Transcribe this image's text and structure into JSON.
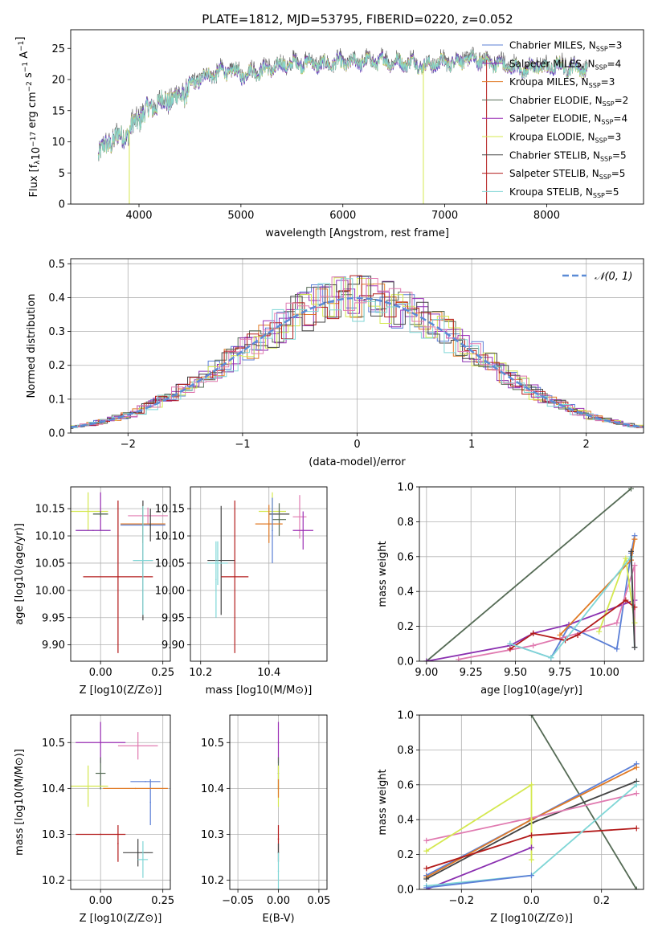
{
  "figure_title": "PLATE=1812, MJD=53795, FIBERID=0220, z=0.052",
  "colors": {
    "chabrier_miles": "#5b7fd6",
    "salpeter_miles": "#8a2fb0",
    "kroupa_miles": "#e07a25",
    "chabrier_elodie": "#556b55",
    "salpeter_elodie": "#9b2fb5",
    "kroupa_elodie": "#d4e84f",
    "chabrier_stelib": "#444444",
    "salpeter_stelib": "#b31b1b",
    "kroupa_stelib": "#7fd6d6",
    "pink": "#e07ab0",
    "gauss": "#5b8bd6",
    "grid": "#b0b0b0"
  },
  "chart_data": [
    {
      "id": "spectrum",
      "type": "line",
      "title": "PLATE=1812, MJD=53795, FIBERID=0220, z=0.052",
      "xlabel": "wavelength [Angstrom, rest frame]",
      "ylabel": "Flux [f_λ 10^-17 erg cm^-2 s^-1 A^-1]",
      "xlim": [
        3330,
        8950
      ],
      "ylim": [
        0,
        28
      ],
      "xticks": [
        4000,
        5000,
        6000,
        7000,
        8000
      ],
      "yticks": [
        0,
        5,
        10,
        15,
        20,
        25
      ],
      "legend_position": "top-right",
      "continuum": {
        "x": [
          3600,
          3650,
          3700,
          3800,
          3900,
          3950,
          4000,
          4100,
          4200,
          4300,
          4400,
          4500,
          4600,
          4700,
          4800,
          4900,
          5000,
          5100,
          5200,
          5300,
          5400,
          5500,
          5600,
          5700,
          5800,
          5900,
          6000,
          6100,
          6200,
          6300,
          6400,
          6500,
          6600,
          6700,
          6800,
          6900,
          7000,
          7100,
          7200,
          7300,
          7400,
          7500,
          7600,
          7700,
          7800,
          7900,
          8000,
          8100,
          8200,
          8300,
          8400
        ],
        "y": [
          8,
          9,
          10,
          11,
          11.5,
          13,
          14,
          15.5,
          16.5,
          17,
          17.5,
          19,
          20.5,
          21,
          21.5,
          21.8,
          21,
          21.5,
          21.8,
          22,
          22.5,
          22.8,
          23,
          23,
          22.5,
          23,
          23,
          23,
          23.2,
          23.3,
          23.3,
          23,
          23,
          23,
          22.5,
          22.8,
          23,
          23.2,
          23.5,
          23.5,
          23.2,
          23,
          22.5,
          22,
          22,
          22.5,
          22,
          22.5,
          22.3,
          22.2,
          22
        ]
      },
      "series": [
        {
          "name": "Chabrier MILES, N_SSP=3",
          "legend": "Chabrier MILES, N",
          "n": "3",
          "color_key": "chabrier_miles"
        },
        {
          "name": "Salpeter MILES, N_SSP=4",
          "legend": "Salpeter MILES, N",
          "n": "4",
          "color_key": "salpeter_miles"
        },
        {
          "name": "Kroupa MILES, N_SSP=3",
          "legend": "Kroupa MILES, N",
          "n": "3",
          "color_key": "kroupa_miles"
        },
        {
          "name": "Chabrier ELODIE, N_SSP=2",
          "legend": "Chabrier ELODIE, N",
          "n": "2",
          "color_key": "chabrier_elodie"
        },
        {
          "name": "Salpeter ELODIE, N_SSP=4",
          "legend": "Salpeter ELODIE, N",
          "n": "4",
          "color_key": "salpeter_elodie"
        },
        {
          "name": "Kroupa ELODIE, N_SSP=3",
          "legend": "Kroupa ELODIE, N",
          "n": "3",
          "color_key": "kroupa_elodie"
        },
        {
          "name": "Chabrier STELIB, N_SSP=5",
          "legend": "Chabrier STELIB, N",
          "n": "5",
          "color_key": "chabrier_stelib"
        },
        {
          "name": "Salpeter STELIB, N_SSP=5",
          "legend": "Salpeter STELIB, N",
          "n": "5",
          "color_key": "salpeter_stelib"
        },
        {
          "name": "Kroupa STELIB, N_SSP=5",
          "legend": "Kroupa STELIB, N",
          "n": "5",
          "color_key": "kroupa_stelib"
        }
      ]
    },
    {
      "id": "residuals",
      "type": "line",
      "xlabel": "(data-model)/error",
      "ylabel": "Normed distribution",
      "xlim": [
        -2.5,
        2.5
      ],
      "ylim": [
        0,
        0.515
      ],
      "xticks": [
        -2,
        -1,
        0,
        1,
        2
      ],
      "yticks": [
        0.0,
        0.1,
        0.2,
        0.3,
        0.4,
        0.5
      ],
      "grid": true,
      "legend_position": "top-right",
      "legend_label": "𝒩(0, 1)",
      "gaussian": {
        "mean": 0,
        "sigma": 1
      }
    },
    {
      "id": "age_Z",
      "type": "scatter",
      "xlabel": "Z [log10(Z/Z⊙)]",
      "ylabel": "age  [log10(age/yr)]",
      "xlim": [
        -0.12,
        0.28
      ],
      "ylim": [
        9.87,
        10.19
      ],
      "xticks": [
        0.0,
        0.25
      ],
      "yticks": [
        9.9,
        9.95,
        10.0,
        10.05,
        10.1,
        10.15
      ],
      "grid": true,
      "points": [
        {
          "c": "kroupa_elodie",
          "x": -0.05,
          "y": 10.145,
          "xe": 0.08,
          "ye": 0.035
        },
        {
          "c": "chabrier_stelib",
          "x": 0.0,
          "y": 10.14,
          "xe": 0.03,
          "ye": 0.0
        },
        {
          "c": "salpeter_elodie",
          "x": 0.0,
          "y": 10.145,
          "xe": 0.0,
          "ye": 0.035
        },
        {
          "c": "chabrier_elodie",
          "x": 0.0,
          "y": 10.14,
          "xe": 0.03,
          "ye": 0.005
        },
        {
          "c": "salpeter_miles",
          "x": -0.03,
          "y": 10.11,
          "xe": 0.07,
          "ye": 0.0
        },
        {
          "c": "pink",
          "x": 0.19,
          "y": 10.137,
          "xe": 0.08,
          "ye": 0.015
        },
        {
          "c": "kroupa_miles",
          "x": 0.17,
          "y": 10.122,
          "xe": 0.09,
          "ye": 0.035
        },
        {
          "c": "chabrier_miles",
          "x": 0.17,
          "y": 10.12,
          "xe": 0.09,
          "ye": 0.0
        },
        {
          "c": "chabrier_stelib",
          "x": 0.2,
          "y": 10.12,
          "xe": 0.0,
          "ye": 0.03
        },
        {
          "c": "salpeter_stelib",
          "x": 0.07,
          "y": 10.025,
          "xe": 0.14,
          "ye": 0.14
        },
        {
          "c": "chabrier_stelib",
          "x": 0.17,
          "y": 10.055,
          "xe": 0.04,
          "ye": 0.11
        },
        {
          "c": "kroupa_stelib",
          "x": 0.17,
          "y": 10.055,
          "xe": 0.04,
          "ye": 0.1
        }
      ]
    },
    {
      "id": "age_mass",
      "type": "scatter",
      "xlabel": "mass [log10(M/M⊙)]",
      "ylabel": "",
      "xlim": [
        10.17,
        10.57
      ],
      "ylim": [
        9.87,
        10.19
      ],
      "xticks": [
        10.2,
        10.4
      ],
      "yticks": [
        9.9,
        9.95,
        10.0,
        10.05,
        10.1,
        10.15
      ],
      "grid": true,
      "points": [
        {
          "c": "kroupa_elodie",
          "x": 10.41,
          "y": 10.145,
          "xe": 0.04,
          "ye": 0.035
        },
        {
          "c": "chabrier_stelib",
          "x": 10.43,
          "y": 10.14,
          "xe": 0.03,
          "ye": 0.0
        },
        {
          "c": "chabrier_elodie",
          "x": 10.43,
          "y": 10.13,
          "xe": 0.02,
          "ye": 0.03
        },
        {
          "c": "pink",
          "x": 10.49,
          "y": 10.135,
          "xe": 0.02,
          "ye": 0.04
        },
        {
          "c": "kroupa_miles",
          "x": 10.4,
          "y": 10.122,
          "xe": 0.04,
          "ye": 0.035
        },
        {
          "c": "salpeter_elodie",
          "x": 10.5,
          "y": 10.11,
          "xe": 0.03,
          "ye": 0.035
        },
        {
          "c": "chabrier_miles",
          "x": 10.41,
          "y": 10.11,
          "xe": 0.0,
          "ye": 0.06
        },
        {
          "c": "chabrier_stelib",
          "x": 10.26,
          "y": 10.055,
          "xe": 0.04,
          "ye": 0.1
        },
        {
          "c": "kroupa_stelib",
          "x": 10.25,
          "y": 10.05,
          "xe": 0.03,
          "ye": 0.04
        },
        {
          "c": "kroupa_stelib",
          "x": 10.245,
          "y": 10.02,
          "xe": 0.0,
          "ye": 0.07
        },
        {
          "c": "salpeter_stelib",
          "x": 10.3,
          "y": 10.025,
          "xe": 0.04,
          "ye": 0.14
        }
      ]
    },
    {
      "id": "mw_age",
      "type": "line",
      "xlabel": "age  [log10(age/yr)]",
      "ylabel": "mass weight",
      "xlim": [
        8.96,
        10.22
      ],
      "ylim": [
        0.0,
        1.0
      ],
      "xticks": [
        9.0,
        9.25,
        9.5,
        9.75,
        10.0
      ],
      "yticks": [
        0.0,
        0.2,
        0.4,
        0.6,
        0.8,
        1.0
      ],
      "grid": true,
      "series": [
        {
          "c": "chabrier_elodie",
          "x": [
            9.0,
            10.15
          ],
          "y": [
            0.0,
            0.99
          ]
        },
        {
          "c": "chabrier_miles",
          "x": [
            9.47,
            9.7,
            9.8,
            10.07,
            10.15,
            10.17
          ],
          "y": [
            0.1,
            0.02,
            0.2,
            0.07,
            0.62,
            0.72
          ]
        },
        {
          "c": "salpeter_miles",
          "x": [
            9.0,
            9.47,
            9.6,
            9.8,
            10.17
          ],
          "y": [
            0.0,
            0.09,
            0.16,
            0.21,
            0.35
          ]
        },
        {
          "c": "kroupa_miles",
          "x": [
            9.75,
            10.15,
            10.17
          ],
          "y": [
            0.15,
            0.58,
            0.7
          ]
        },
        {
          "c": "pink",
          "x": [
            9.18,
            9.6,
            10.07,
            10.17,
            10.17
          ],
          "y": [
            0.01,
            0.09,
            0.22,
            0.55,
            0.08
          ]
        },
        {
          "c": "kroupa_elodie",
          "x": [
            9.97,
            10.12,
            10.17
          ],
          "y": [
            0.17,
            0.59,
            0.22
          ]
        },
        {
          "c": "salpeter_stelib",
          "x": [
            9.47,
            9.6,
            9.78,
            9.85,
            10.12,
            10.17
          ],
          "y": [
            0.07,
            0.16,
            0.12,
            0.15,
            0.35,
            0.31
          ]
        },
        {
          "c": "kroupa_stelib",
          "x": [
            9.47,
            9.7,
            10.15,
            10.17
          ],
          "y": [
            0.1,
            0.02,
            0.6,
            0.08
          ]
        },
        {
          "c": "chabrier_stelib",
          "x": [
            10.15,
            10.17
          ],
          "y": [
            0.63,
            0.08
          ]
        }
      ]
    },
    {
      "id": "mass_Z",
      "type": "scatter",
      "xlabel": "Z [log10(Z/Z⊙)]",
      "ylabel": "mass [log10(M/M⊙)]",
      "xlim": [
        -0.12,
        0.28
      ],
      "ylim": [
        10.18,
        10.56
      ],
      "xticks": [
        0.0,
        0.25
      ],
      "yticks": [
        10.2,
        10.3,
        10.4,
        10.5
      ],
      "grid": true,
      "points": [
        {
          "c": "salpeter_elodie",
          "x": 0.0,
          "y": 10.5,
          "xe": 0.1,
          "ye": 0.045
        },
        {
          "c": "pink",
          "x": 0.15,
          "y": 10.493,
          "xe": 0.08,
          "ye": 0.03
        },
        {
          "c": "chabrier_elodie",
          "x": 0.0,
          "y": 10.433,
          "xe": 0.02,
          "ye": 0.035
        },
        {
          "c": "kroupa_elodie",
          "x": -0.05,
          "y": 10.405,
          "xe": 0.08,
          "ye": 0.045
        },
        {
          "c": "chabrier_miles",
          "x": 0.18,
          "y": 10.415,
          "xe": 0.06,
          "ye": 0.0
        },
        {
          "c": "chabrier_miles",
          "x": 0.2,
          "y": 10.37,
          "xe": 0.0,
          "ye": 0.05
        },
        {
          "c": "kroupa_miles",
          "x": 0.14,
          "y": 10.4,
          "xe": 0.13,
          "ye": 0.0
        },
        {
          "c": "salpeter_stelib",
          "x": 0.0,
          "y": 10.3,
          "xe": 0.1,
          "ye": 0.0
        },
        {
          "c": "salpeter_stelib",
          "x": 0.07,
          "y": 10.28,
          "xe": 0.0,
          "ye": 0.04
        },
        {
          "c": "chabrier_stelib",
          "x": 0.15,
          "y": 10.26,
          "xe": 0.06,
          "ye": 0.03
        },
        {
          "c": "kroupa_stelib",
          "x": 0.17,
          "y": 10.245,
          "xe": 0.02,
          "ye": 0.04
        }
      ]
    },
    {
      "id": "mass_ebv",
      "type": "scatter",
      "xlabel": "E(B-V)",
      "ylabel": "",
      "xlim": [
        -0.06,
        0.06
      ],
      "ylim": [
        10.18,
        10.56
      ],
      "xticks": [
        -0.05,
        0.0,
        0.05
      ],
      "yticks": [
        10.2,
        10.3,
        10.4,
        10.5
      ],
      "grid": true,
      "points": [
        {
          "c": "salpeter_elodie",
          "x": 0.0,
          "y": 10.5,
          "xe": 0.0,
          "ye": 0.045
        },
        {
          "c": "chabrier_elodie",
          "x": 0.0,
          "y": 10.433,
          "xe": 0.0,
          "ye": 0.035
        },
        {
          "c": "kroupa_elodie",
          "x": 0.0,
          "y": 10.405,
          "xe": 0.0,
          "ye": 0.045
        },
        {
          "c": "kroupa_miles",
          "x": 0.0,
          "y": 10.4,
          "xe": 0.0,
          "ye": 0.02
        },
        {
          "c": "salpeter_stelib",
          "x": 0.0,
          "y": 10.29,
          "xe": 0.0,
          "ye": 0.03
        },
        {
          "c": "chabrier_stelib",
          "x": 0.0,
          "y": 10.26,
          "xe": 0.0,
          "ye": 0.02
        },
        {
          "c": "kroupa_stelib",
          "x": 0.0,
          "y": 10.22,
          "xe": 0.0,
          "ye": 0.04
        }
      ]
    },
    {
      "id": "mw_Z",
      "type": "line",
      "xlabel": "Z [log10(Z/Z⊙)]",
      "ylabel": "mass weight",
      "xlim": [
        -0.32,
        0.32
      ],
      "ylim": [
        0.0,
        1.0
      ],
      "xticks": [
        -0.2,
        0.0,
        0.2
      ],
      "yticks": [
        0.0,
        0.2,
        0.4,
        0.6,
        0.8,
        1.0
      ],
      "grid": true,
      "series": [
        {
          "c": "chabrier_elodie",
          "x": [
            0.0,
            0.3
          ],
          "y": [
            1.0,
            0.0
          ]
        },
        {
          "c": "chabrier_miles",
          "x": [
            -0.3,
            0.0,
            0.3
          ],
          "y": [
            0.08,
            0.4,
            0.72
          ]
        },
        {
          "c": "kroupa_miles",
          "x": [
            -0.3,
            0.0,
            0.3
          ],
          "y": [
            0.07,
            0.4,
            0.7
          ]
        },
        {
          "c": "chabrier_stelib",
          "x": [
            -0.3,
            0.0,
            0.3
          ],
          "y": [
            0.06,
            0.38,
            0.62
          ]
        },
        {
          "c": "pink",
          "x": [
            -0.3,
            0.0,
            0.3
          ],
          "y": [
            0.28,
            0.41,
            0.55
          ]
        },
        {
          "c": "kroupa_elodie",
          "x": [
            -0.3,
            0.0,
            0.0
          ],
          "y": [
            0.22,
            0.6,
            0.17
          ]
        },
        {
          "c": "salpeter_stelib",
          "x": [
            -0.3,
            0.0,
            0.3
          ],
          "y": [
            0.12,
            0.31,
            0.35
          ]
        },
        {
          "c": "salpeter_miles",
          "x": [
            -0.3,
            0.0
          ],
          "y": [
            0.0,
            0.24
          ]
        },
        {
          "c": "kroupa_stelib",
          "x": [
            -0.3,
            0.0,
            0.3
          ],
          "y": [
            0.02,
            0.08,
            0.6
          ]
        },
        {
          "c": "chabrier_miles",
          "x": [
            -0.3,
            0.0
          ],
          "y": [
            0.01,
            0.08
          ]
        }
      ]
    }
  ]
}
